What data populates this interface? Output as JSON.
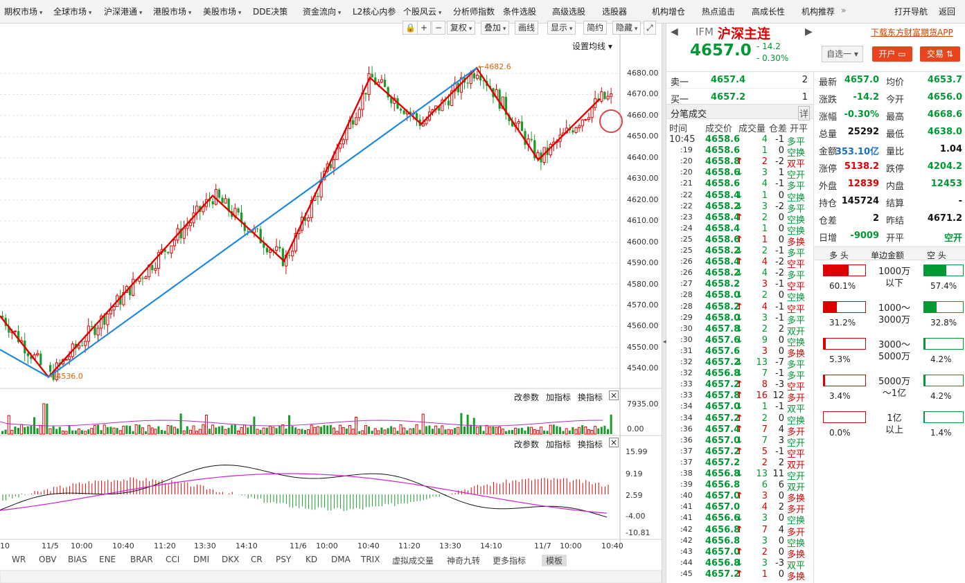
{
  "topnav": [
    {
      "label": "期权市场",
      "dd": true
    },
    {
      "label": "全球市场",
      "dd": true
    },
    {
      "label": "沪深港通",
      "dd": true
    },
    {
      "label": "港股市场",
      "dd": true
    },
    {
      "label": "美股市场",
      "dd": true
    },
    {
      "label": "DDE决策",
      "dd": false
    },
    {
      "label": "资金流向",
      "dd": true
    },
    {
      "label": "L2核心内参",
      "dd": false
    },
    {
      "label": "个股风云",
      "dd": true
    },
    {
      "label": "分析师指数",
      "dd": false
    },
    {
      "label": "条件选股",
      "dd": false
    },
    {
      "label": "高级选股",
      "dd": false
    },
    {
      "label": "选股器",
      "dd": false
    },
    {
      "label": "机构增仓",
      "dd": false
    },
    {
      "label": "热点追击",
      "dd": false
    },
    {
      "label": "高成长性",
      "dd": false
    },
    {
      "label": "机构推荐",
      "dd": false
    }
  ],
  "topnav_right": {
    "more": "»",
    "open_nav": "打开导航",
    "back": "返回"
  },
  "chart_toolbar": {
    "restore": "复权",
    "overlay": "叠加",
    "drawline": "画线",
    "display": "显示",
    "simple": "简约",
    "hide": "隐藏",
    "set_ma": "设置均线"
  },
  "indicator_panel": {
    "modify": "改参数",
    "add": "加指标",
    "swap": "换指标",
    "close": "×"
  },
  "price_axis": [
    "4680.00",
    "4670.00",
    "4660.00",
    "4650.00",
    "4640.00",
    "4630.00",
    "4620.00",
    "4610.00",
    "4600.00",
    "4590.00",
    "4580.00",
    "4570.00",
    "4560.00",
    "4550.00",
    "4540.00"
  ],
  "vol_axis": [
    "7935.00",
    "0.00"
  ],
  "macd_axis": [
    "15.99",
    "9.19",
    "2.59",
    "-4.00",
    "-10.81"
  ],
  "time_axis": [
    "10",
    "11/5",
    "10:00",
    "10:40",
    "11:20",
    "13:30",
    "14:10",
    "11/6",
    "10:00",
    "10:40",
    "11:20",
    "13:30",
    "14:10",
    "11/7",
    "10:00",
    "10:40"
  ],
  "annotations": {
    "high": "4682.6",
    "low": "4536.0"
  },
  "indicator_tabs": [
    "WR",
    "OBV",
    "BIAS",
    "ENE",
    "BRAR",
    "CCI",
    "DMI",
    "DKX",
    "CR",
    "PSY",
    "KD",
    "DMA",
    "TRIX",
    "虚拟成交量",
    "神奇九转",
    "更多指标",
    "模板"
  ],
  "chart_data": {
    "type": "candlestick",
    "ylim": [
      4530,
      4690
    ],
    "zigzag_red": [
      4565,
      4536,
      4622,
      4591,
      4678,
      4656,
      4682.6,
      4639,
      4668
    ],
    "trend_blue": [
      4549,
      4536,
      4682.6
    ],
    "notes": "Red zigzag wave lines and blue trend lines drawn over 5-minute candles; volume and MACD sub-panels"
  },
  "quote": {
    "code": "IFM",
    "name": "沪深主连",
    "price": "4657.0",
    "change": "- 14.2",
    "pct": "- 0.30%",
    "watch": "自选一",
    "open_account": "开户",
    "trade": "交易",
    "app_link": "下载东方财富期货APP"
  },
  "orderbook": [
    {
      "label": "卖一",
      "price": "4657.4",
      "qty": "2"
    },
    {
      "label": "买一",
      "price": "4657.2",
      "qty": "1"
    }
  ],
  "stats": [
    {
      "k1": "最新",
      "v1": "4657.0",
      "c1": "grn",
      "k2": "均价",
      "v2": "4653.7",
      "c2": "grn"
    },
    {
      "k1": "涨跌",
      "v1": "-14.2",
      "c1": "grn",
      "k2": "今开",
      "v2": "4656.0",
      "c2": "grn"
    },
    {
      "k1": "涨幅",
      "v1": "-0.30%",
      "c1": "grn",
      "k2": "最高",
      "v2": "4668.6",
      "c2": "grn"
    },
    {
      "k1": "总量",
      "v1": "25292",
      "c1": "",
      "k2": "最低",
      "v2": "4638.0",
      "c2": "grn"
    },
    {
      "k1": "金额",
      "v1": "353.10亿",
      "c1": "blue",
      "k2": "量比",
      "v2": "1.04",
      "c2": ""
    },
    {
      "k1": "涨停",
      "v1": "5138.2",
      "c1": "red",
      "k2": "跌停",
      "v2": "4204.2",
      "c2": "grn"
    },
    {
      "k1": "外盘",
      "v1": "12839",
      "c1": "red",
      "k2": "内盘",
      "v2": "12453",
      "c2": "grn"
    },
    {
      "k1": "持仓",
      "v1": "145724",
      "c1": "",
      "k2": "结算",
      "v2": "-",
      "c2": ""
    },
    {
      "k1": "仓差",
      "v1": "2",
      "c1": "",
      "k2": "昨结",
      "v2": "4671.2",
      "c2": ""
    },
    {
      "k1": "日增",
      "v1": "-9009",
      "c1": "grn",
      "k2": "开平",
      "v2": "空开",
      "c2": "grn"
    }
  ],
  "ticks_header": {
    "title": "分笔成交",
    "detail": "详",
    "time": "时间",
    "price": "成交价",
    "vol": "成交量",
    "oi": "仓差",
    "type": "开平"
  },
  "ticks": [
    [
      "10:45",
      "4658.6",
      "",
      "4",
      "-1",
      "多平",
      "g"
    ],
    [
      ":19",
      "4658.6",
      "",
      "1",
      "0",
      "空换",
      "g"
    ],
    [
      ":20",
      "4658.8",
      "↑",
      "2",
      "-2",
      "双平",
      "r"
    ],
    [
      ":20",
      "4658.6",
      "↓",
      "3",
      "1",
      "空开",
      "g"
    ],
    [
      ":21",
      "4658.6",
      "",
      "4",
      "-1",
      "多平",
      "g"
    ],
    [
      ":22",
      "4658.4",
      "↓",
      "1",
      "0",
      "空换",
      "g"
    ],
    [
      ":22",
      "4658.2",
      "↓",
      "3",
      "-2",
      "多平",
      "g"
    ],
    [
      ":23",
      "4658.4",
      "↑",
      "2",
      "0",
      "空换",
      "g"
    ],
    [
      ":24",
      "4658.4",
      "",
      "1",
      "0",
      "空换",
      "g"
    ],
    [
      ":25",
      "4658.6",
      "↑",
      "1",
      "0",
      "多换",
      "r"
    ],
    [
      ":25",
      "4658.2",
      "↓",
      "2",
      "-1",
      "多平",
      "g"
    ],
    [
      ":26",
      "4658.4",
      "↑",
      "4",
      "-2",
      "空平",
      "r"
    ],
    [
      ":26",
      "4658.2",
      "↓",
      "4",
      "-2",
      "多平",
      "g"
    ],
    [
      ":27",
      "4658.2",
      "",
      "3",
      "-1",
      "空平",
      "r"
    ],
    [
      ":28",
      "4658.0",
      "↓",
      "2",
      "0",
      "空换",
      "g"
    ],
    [
      ":28",
      "4658.2",
      "↑",
      "4",
      "-1",
      "空平",
      "r"
    ],
    [
      ":29",
      "4658.0",
      "↓",
      "3",
      "-1",
      "多平",
      "g"
    ],
    [
      ":30",
      "4657.8",
      "↓",
      "2",
      "2",
      "双开",
      "g"
    ],
    [
      ":30",
      "4657.6",
      "↓",
      "9",
      "0",
      "空换",
      "g"
    ],
    [
      ":31",
      "4657.6",
      "",
      "3",
      "0",
      "多换",
      "r"
    ],
    [
      ":32",
      "4657.2",
      "↓",
      "13",
      "-7",
      "多平",
      "g"
    ],
    [
      ":32",
      "4656.8",
      "↓",
      "7",
      "-1",
      "多平",
      "g"
    ],
    [
      ":33",
      "4657.2",
      "↑",
      "8",
      "-3",
      "空平",
      "r"
    ],
    [
      ":33",
      "4657.8",
      "↑",
      "16",
      "12",
      "多开",
      "r"
    ],
    [
      ":34",
      "4657.0",
      "↓",
      "1",
      "-1",
      "双平",
      "g"
    ],
    [
      ":34",
      "4657.2",
      "↑",
      "2",
      "0",
      "空换",
      "g"
    ],
    [
      ":36",
      "4657.4",
      "↑",
      "7",
      "4",
      "多开",
      "r"
    ],
    [
      ":36",
      "4657.0",
      "↓",
      "7",
      "3",
      "空开",
      "g"
    ],
    [
      ":37",
      "4657.2",
      "↑",
      "5",
      "-1",
      "空平",
      "r"
    ],
    [
      ":37",
      "4657.2",
      "",
      "2",
      "2",
      "双开",
      "r"
    ],
    [
      ":38",
      "4656.8",
      "↓",
      "13",
      "11",
      "空开",
      "g"
    ],
    [
      ":39",
      "4656.8",
      "",
      "6",
      "6",
      "双开",
      "g"
    ],
    [
      ":40",
      "4657.0",
      "↑",
      "3",
      "0",
      "多换",
      "r"
    ],
    [
      ":41",
      "4657.0",
      "",
      "4",
      "2",
      "多开",
      "r"
    ],
    [
      ":41",
      "4656.6",
      "↓",
      "3",
      "0",
      "空换",
      "g"
    ],
    [
      ":42",
      "4656.8",
      "↑",
      "7",
      "4",
      "多开",
      "r"
    ],
    [
      ":42",
      "4656.8",
      "",
      "3",
      "0",
      "空换",
      "g"
    ],
    [
      ":43",
      "4657.0",
      "↑",
      "2",
      "0",
      "多换",
      "r"
    ],
    [
      ":44",
      "4656.8",
      "↓",
      "3",
      "-3",
      "双平",
      "g"
    ],
    [
      ":45",
      "4657.2",
      "↑",
      "1",
      "0",
      "多换",
      "r"
    ]
  ],
  "moneyflow": {
    "headers": {
      "long": "多 头",
      "amount": "单边金额",
      "short": "空 头"
    },
    "rows": [
      {
        "long": "60.1%",
        "lfill": 0.601,
        "label": "1000万\n以下",
        "short": "57.4%",
        "sfill": 0.574
      },
      {
        "long": "31.2%",
        "lfill": 0.312,
        "label": "1000～\n3000万",
        "short": "32.8%",
        "sfill": 0.328
      },
      {
        "long": "5.3%",
        "lfill": 0.053,
        "label": "3000～\n5000万",
        "short": "4.2%",
        "sfill": 0.042
      },
      {
        "long": "3.4%",
        "lfill": 0.034,
        "label": "5000万\n～1亿",
        "short": "4.2%",
        "sfill": 0.042
      },
      {
        "long": "0.0%",
        "lfill": 0.0,
        "label": "1亿\n以上",
        "short": "1.4%",
        "sfill": 0.014
      }
    ]
  },
  "colors": {
    "up": "#e00000",
    "down": "#1a9a2a",
    "wave": "#e00000",
    "trend": "#1e88e5"
  }
}
